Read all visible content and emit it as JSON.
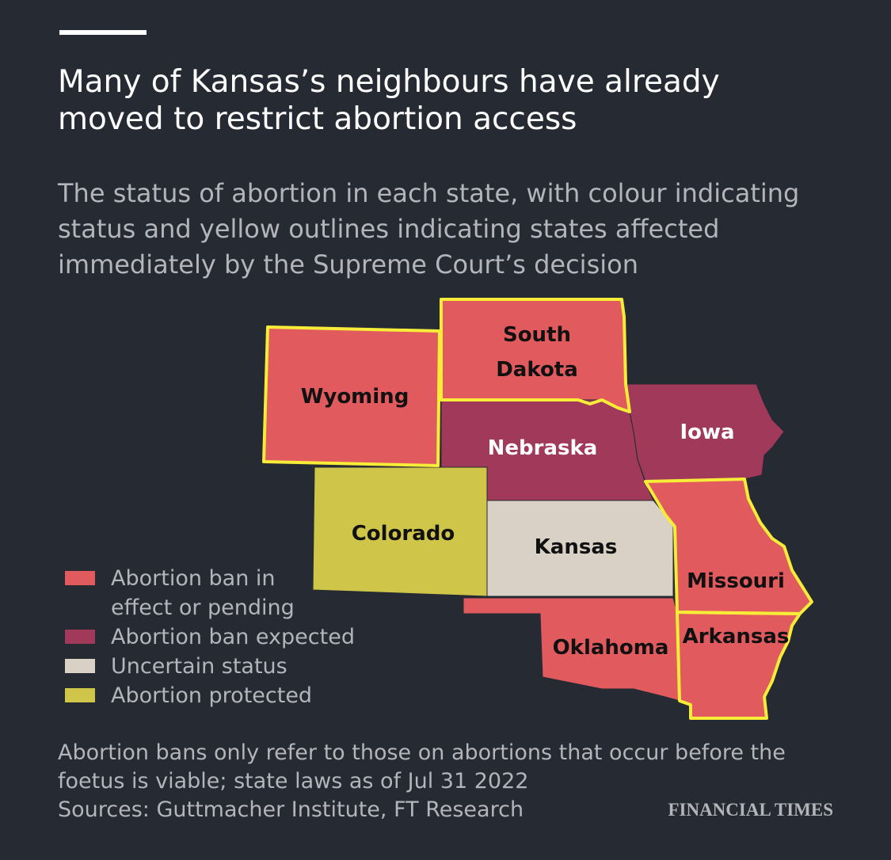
{
  "header": {
    "title": "Many of Kansas’s neighbours have already moved to restrict abortion access",
    "subtitle": "The status of abortion in each state, with colour indicating status and yellow outlines indicating states affected immediately by the Supreme Court’s decision"
  },
  "legend": [
    {
      "label": "Abortion ban in effect or pending",
      "color": "#e05a5e"
    },
    {
      "label": "Abortion ban expected",
      "color": "#a1395a"
    },
    {
      "label": "Uncertain status",
      "color": "#d9d0c6"
    },
    {
      "label": "Abortion protected",
      "color": "#cfc548"
    }
  ],
  "outline_color": "#f7ec38",
  "states": [
    {
      "name": "Wyoming",
      "status": 0,
      "outline": true
    },
    {
      "name": "South Dakota",
      "status": 0,
      "outline": true
    },
    {
      "name": "Nebraska",
      "status": 1,
      "outline": false
    },
    {
      "name": "Iowa",
      "status": 1,
      "outline": false
    },
    {
      "name": "Colorado",
      "status": 3,
      "outline": false
    },
    {
      "name": "Kansas",
      "status": 2,
      "outline": false
    },
    {
      "name": "Missouri",
      "status": 0,
      "outline": true
    },
    {
      "name": "Oklahoma",
      "status": 0,
      "outline": false
    },
    {
      "name": "Arkansas",
      "status": 0,
      "outline": true
    }
  ],
  "footer": {
    "note": "Abortion bans only refer to those on abortions that occur before the foetus is viable; state laws as of Jul 31 2022",
    "source": "Sources: Guttmacher Institute, FT Research",
    "brand": "FINANCIAL TIMES"
  }
}
